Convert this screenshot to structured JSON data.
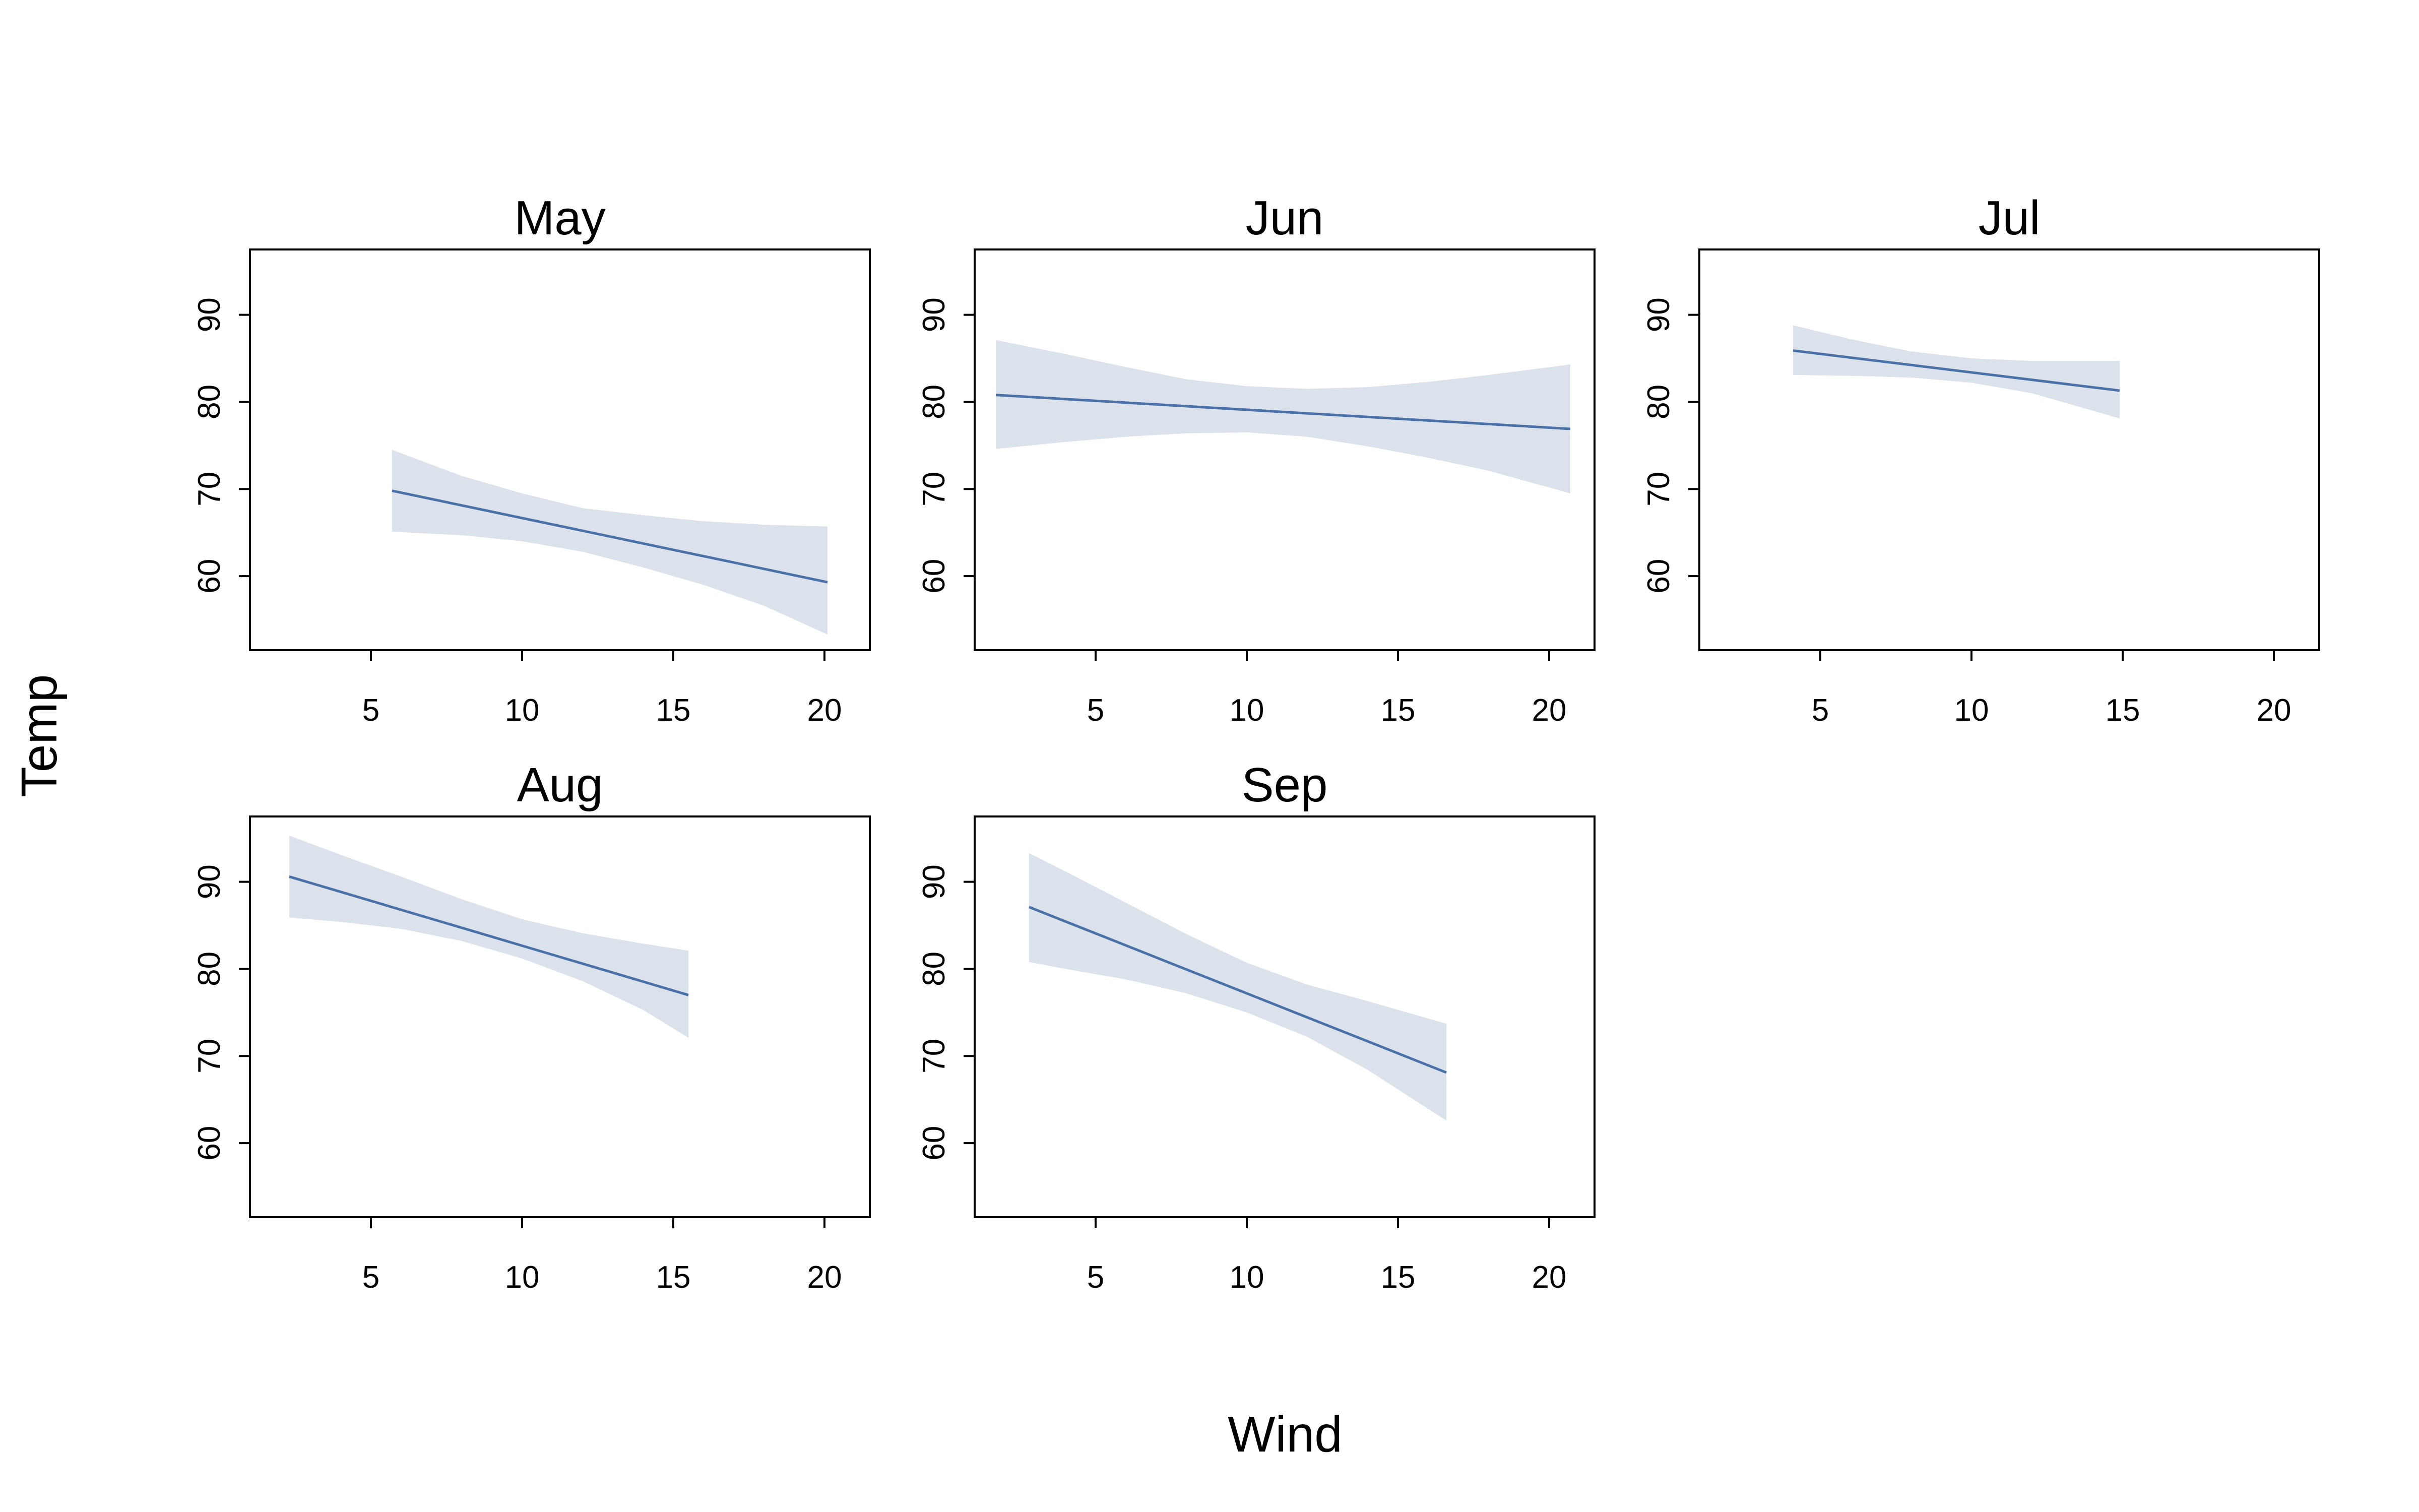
{
  "chart_data": {
    "type": "line",
    "xlabel": "Wind",
    "ylabel": "Temp",
    "xlim": [
      1,
      21.5
    ],
    "ylim": [
      51.5,
      97.5
    ],
    "xticks": [
      5,
      10,
      15,
      20
    ],
    "yticks": [
      60,
      70,
      80,
      90
    ],
    "grid": false,
    "colors": {
      "line": "#4a70a8",
      "band": "#dbe2ec",
      "frame": "#000000"
    },
    "panels": [
      {
        "title": "May",
        "line": [
          [
            5.7,
            69.8
          ],
          [
            20.1,
            59.3
          ]
        ],
        "band_upper": [
          [
            5.7,
            74.5
          ],
          [
            8,
            71.5
          ],
          [
            10,
            69.5
          ],
          [
            12,
            67.8
          ],
          [
            14,
            67
          ],
          [
            16,
            66.3
          ],
          [
            18,
            65.9
          ],
          [
            20.1,
            65.7
          ]
        ],
        "band_lower": [
          [
            5.7,
            65.1
          ],
          [
            8,
            64.7
          ],
          [
            10,
            64
          ],
          [
            12,
            62.8
          ],
          [
            14,
            61
          ],
          [
            16,
            59
          ],
          [
            18,
            56.6
          ],
          [
            20.1,
            53.3
          ]
        ]
      },
      {
        "title": "Jun",
        "line": [
          [
            1.7,
            80.8
          ],
          [
            20.7,
            76.9
          ]
        ],
        "band_upper": [
          [
            1.7,
            87.1
          ],
          [
            4,
            85.5
          ],
          [
            6,
            84
          ],
          [
            8,
            82.6
          ],
          [
            10,
            81.8
          ],
          [
            12,
            81.5
          ],
          [
            14,
            81.7
          ],
          [
            16,
            82.3
          ],
          [
            18,
            83.1
          ],
          [
            20.7,
            84.3
          ]
        ],
        "band_lower": [
          [
            1.7,
            74.6
          ],
          [
            4,
            75.4
          ],
          [
            6,
            76
          ],
          [
            8,
            76.4
          ],
          [
            10,
            76.5
          ],
          [
            12,
            76
          ],
          [
            14,
            74.9
          ],
          [
            16,
            73.6
          ],
          [
            18,
            72.1
          ],
          [
            20.7,
            69.5
          ]
        ]
      },
      {
        "title": "Jul",
        "line": [
          [
            4.1,
            85.9
          ],
          [
            14.9,
            81.3
          ]
        ],
        "band_upper": [
          [
            4.1,
            88.8
          ],
          [
            6,
            87.2
          ],
          [
            8,
            85.8
          ],
          [
            10,
            85
          ],
          [
            12,
            84.7
          ],
          [
            14.9,
            84.7
          ]
        ],
        "band_lower": [
          [
            4.1,
            83.1
          ],
          [
            6,
            83
          ],
          [
            8,
            82.8
          ],
          [
            10,
            82.2
          ],
          [
            12,
            81
          ],
          [
            14.9,
            78.1
          ]
        ]
      },
      {
        "title": "Aug",
        "line": [
          [
            2.3,
            90.6
          ],
          [
            15.5,
            77
          ]
        ],
        "band_upper": [
          [
            2.3,
            95.3
          ],
          [
            4,
            93.1
          ],
          [
            6,
            90.6
          ],
          [
            8,
            88
          ],
          [
            10,
            85.7
          ],
          [
            12,
            84.1
          ],
          [
            14,
            82.9
          ],
          [
            15.5,
            82.1
          ]
        ],
        "band_lower": [
          [
            2.3,
            85.9
          ],
          [
            4,
            85.4
          ],
          [
            6,
            84.6
          ],
          [
            8,
            83.2
          ],
          [
            10,
            81.2
          ],
          [
            12,
            78.6
          ],
          [
            14,
            75.3
          ],
          [
            15.5,
            72.1
          ]
        ]
      },
      {
        "title": "Sep",
        "line": [
          [
            2.8,
            87.1
          ],
          [
            16.6,
            68.1
          ]
        ],
        "band_upper": [
          [
            2.8,
            93.3
          ],
          [
            4,
            91.2
          ],
          [
            6,
            87.6
          ],
          [
            8,
            84
          ],
          [
            10,
            80.7
          ],
          [
            12,
            78.2
          ],
          [
            14,
            76.3
          ],
          [
            16.6,
            73.7
          ]
        ],
        "band_lower": [
          [
            2.8,
            80.8
          ],
          [
            4,
            80
          ],
          [
            6,
            78.8
          ],
          [
            8,
            77.2
          ],
          [
            10,
            75
          ],
          [
            12,
            72.2
          ],
          [
            14,
            68.4
          ],
          [
            16.6,
            62.6
          ]
        ]
      }
    ]
  }
}
